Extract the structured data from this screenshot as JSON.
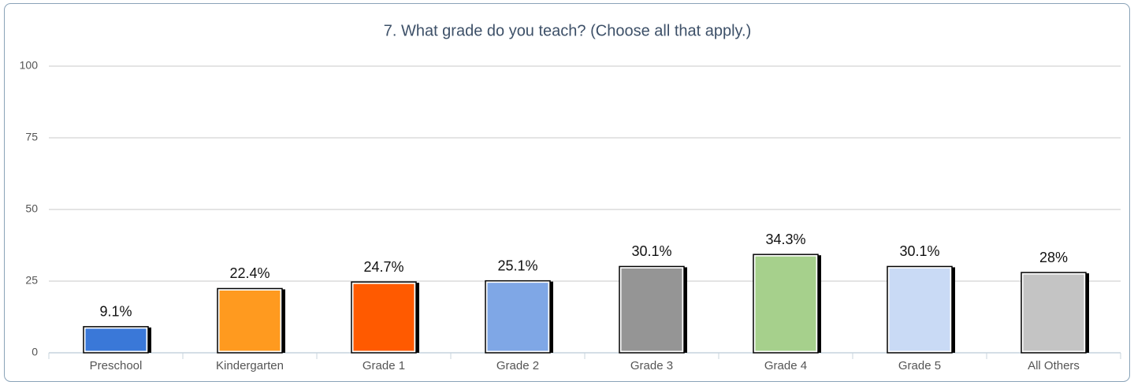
{
  "chart_data": {
    "type": "bar",
    "title": "7. What grade do you teach? (Choose all that apply.)",
    "categories": [
      "Preschool",
      "Kindergarten",
      "Grade 1",
      "Grade 2",
      "Grade 3",
      "Grade 4",
      "Grade 5",
      "All Others"
    ],
    "values": [
      9.1,
      22.4,
      24.7,
      25.1,
      30.1,
      34.3,
      30.1,
      28
    ],
    "value_labels": [
      "9.1%",
      "22.4%",
      "24.7%",
      "25.1%",
      "30.1%",
      "34.3%",
      "30.1%",
      "28%"
    ],
    "colors": [
      "#3a78d8",
      "#ff9a1f",
      "#ff5a00",
      "#7fa7e6",
      "#959595",
      "#a6d08c",
      "#c9daf5",
      "#c4c4c4"
    ],
    "ylim": [
      0,
      100
    ],
    "yticks": [
      0,
      25,
      50,
      75,
      100
    ],
    "grid": true
  }
}
